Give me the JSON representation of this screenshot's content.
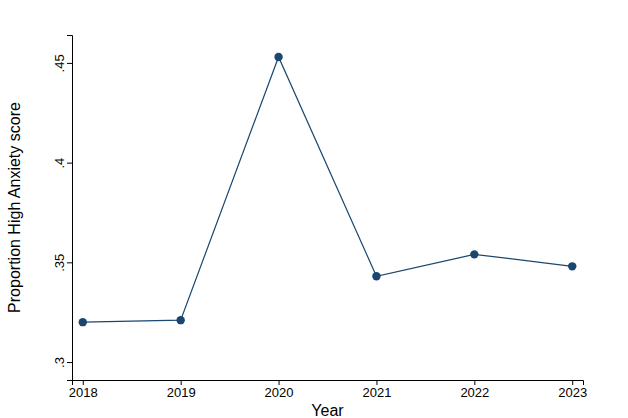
{
  "chart_data": {
    "type": "line",
    "x": [
      2018,
      2019,
      2020,
      2021,
      2022,
      2023
    ],
    "values": [
      0.32,
      0.321,
      0.453,
      0.343,
      0.354,
      0.348
    ],
    "color": "#1a476f",
    "marker": "circle",
    "xlabel": "Year",
    "ylabel": "Proportion High Anxiety score",
    "xlim": [
      2017.89,
      2023.11
    ],
    "ylim": [
      0.291,
      0.464
    ],
    "xticks": [
      2018,
      2019,
      2020,
      2021,
      2022,
      2023
    ],
    "yticks": [
      {
        "value": 0.3,
        "label": ".3"
      },
      {
        "value": 0.35,
        "label": ".35"
      },
      {
        "value": 0.4,
        "label": ".4"
      },
      {
        "value": 0.45,
        "label": ".45"
      }
    ],
    "grid": false
  }
}
